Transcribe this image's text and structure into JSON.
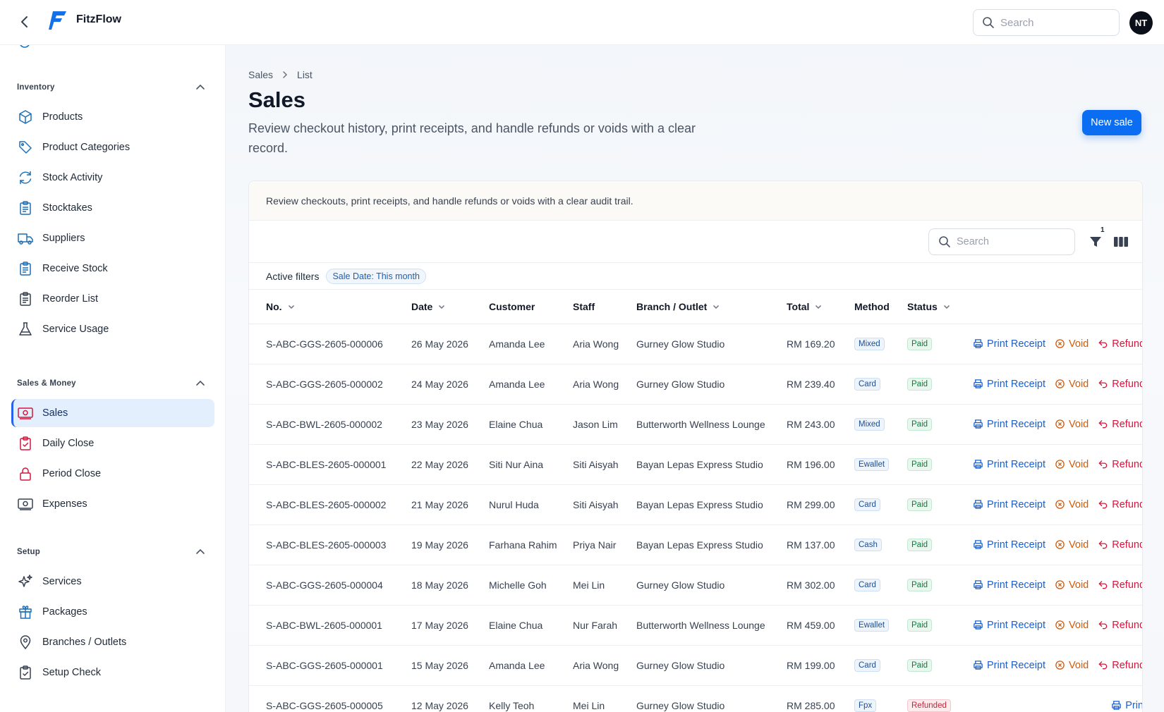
{
  "app": {
    "name": "FitzFlow",
    "user_initials": "NT"
  },
  "top_search": {
    "placeholder": "Search"
  },
  "sidebar": {
    "sections": [
      {
        "title": "Inventory",
        "items": [
          {
            "label": "Products",
            "icon": "cube-icon"
          },
          {
            "label": "Product Categories",
            "icon": "tag-icon"
          },
          {
            "label": "Stock Activity",
            "icon": "refresh-icon"
          },
          {
            "label": "Stocktakes",
            "icon": "clipboard-list-icon"
          },
          {
            "label": "Suppliers",
            "icon": "truck-icon"
          },
          {
            "label": "Receive Stock",
            "icon": "clipboard-list-icon"
          },
          {
            "label": "Reorder List",
            "icon": "clipboard-icon"
          },
          {
            "label": "Service Usage",
            "icon": "flask-icon"
          }
        ]
      },
      {
        "title": "Sales & Money",
        "items": [
          {
            "label": "Sales",
            "icon": "banknote-icon",
            "active": true
          },
          {
            "label": "Daily Close",
            "icon": "clipboard-check-icon"
          },
          {
            "label": "Period Close",
            "icon": "lock-icon"
          },
          {
            "label": "Expenses",
            "icon": "banknote-icon"
          }
        ]
      },
      {
        "title": "Setup",
        "items": [
          {
            "label": "Services",
            "icon": "sparkles-icon"
          },
          {
            "label": "Packages",
            "icon": "gift-icon"
          },
          {
            "label": "Branches / Outlets",
            "icon": "map-pin-icon"
          },
          {
            "label": "Setup Check",
            "icon": "clipboard-check-icon"
          }
        ]
      }
    ]
  },
  "breadcrumb": {
    "parent": "Sales",
    "current": "List"
  },
  "page": {
    "title": "Sales",
    "description": "Review checkout history, print receipts, and handle refunds or voids with a clear record.",
    "new_button": "New sale"
  },
  "card": {
    "note": "Review checkouts, print receipts, and handle refunds or voids with a clear audit trail.",
    "search_placeholder": "Search",
    "filter_count": "1",
    "active_filters_label": "Active filters",
    "active_filter_chip": "Sale Date: This month"
  },
  "table": {
    "columns": [
      "No.",
      "Date",
      "Customer",
      "Staff",
      "Branch / Outlet",
      "Total",
      "Method",
      "Status"
    ],
    "actions": {
      "print": "Print Receipt",
      "void": "Void",
      "refund": "Refund",
      "print_short": "Prin"
    },
    "rows": [
      {
        "no": "S-ABC-GGS-2605-000006",
        "date": "26 May 2026",
        "customer": "Amanda Lee",
        "staff": "Aria Wong",
        "branch": "Gurney Glow Studio",
        "total": "RM 169.20",
        "method": "Mixed",
        "status": "Paid"
      },
      {
        "no": "S-ABC-GGS-2605-000002",
        "date": "24 May 2026",
        "customer": "Amanda Lee",
        "staff": "Aria Wong",
        "branch": "Gurney Glow Studio",
        "total": "RM 239.40",
        "method": "Card",
        "status": "Paid"
      },
      {
        "no": "S-ABC-BWL-2605-000002",
        "date": "23 May 2026",
        "customer": "Elaine Chua",
        "staff": "Jason Lim",
        "branch": "Butterworth Wellness Lounge",
        "total": "RM 243.00",
        "method": "Mixed",
        "status": "Paid"
      },
      {
        "no": "S-ABC-BLES-2605-000001",
        "date": "22 May 2026",
        "customer": "Siti Nur Aina",
        "staff": "Siti Aisyah",
        "branch": "Bayan Lepas Express Studio",
        "total": "RM 196.00",
        "method": "Ewallet",
        "status": "Paid"
      },
      {
        "no": "S-ABC-BLES-2605-000002",
        "date": "21 May 2026",
        "customer": "Nurul Huda",
        "staff": "Siti Aisyah",
        "branch": "Bayan Lepas Express Studio",
        "total": "RM 299.00",
        "method": "Card",
        "status": "Paid"
      },
      {
        "no": "S-ABC-BLES-2605-000003",
        "date": "19 May 2026",
        "customer": "Farhana Rahim",
        "staff": "Priya Nair",
        "branch": "Bayan Lepas Express Studio",
        "total": "RM 137.00",
        "method": "Cash",
        "status": "Paid"
      },
      {
        "no": "S-ABC-GGS-2605-000004",
        "date": "18 May 2026",
        "customer": "Michelle Goh",
        "staff": "Mei Lin",
        "branch": "Gurney Glow Studio",
        "total": "RM 302.00",
        "method": "Card",
        "status": "Paid"
      },
      {
        "no": "S-ABC-BWL-2605-000001",
        "date": "17 May 2026",
        "customer": "Elaine Chua",
        "staff": "Nur Farah",
        "branch": "Butterworth Wellness Lounge",
        "total": "RM 459.00",
        "method": "Ewallet",
        "status": "Paid"
      },
      {
        "no": "S-ABC-GGS-2605-000001",
        "date": "15 May 2026",
        "customer": "Amanda Lee",
        "staff": "Aria Wong",
        "branch": "Gurney Glow Studio",
        "total": "RM 199.00",
        "method": "Card",
        "status": "Paid"
      },
      {
        "no": "S-ABC-GGS-2605-000005",
        "date": "12 May 2026",
        "customer": "Kelly Teoh",
        "staff": "Mei Lin",
        "branch": "Gurney Glow Studio",
        "total": "RM 285.00",
        "method": "Fpx",
        "status": "Refunded"
      }
    ]
  },
  "colors": {
    "accent": "#0b6ef2",
    "link": "#1d5fc7",
    "void": "#d35a08",
    "refund": "#d4163c",
    "sidebar_icon": "#1d6fb8",
    "sidebar_icon_red": "#d4163c"
  }
}
